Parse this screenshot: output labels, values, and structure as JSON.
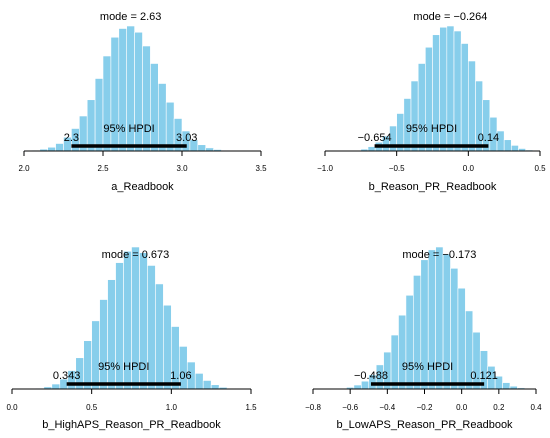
{
  "colors": {
    "bar": "#87CEEB",
    "bar_stroke": "#ffffff",
    "axis": "#000000",
    "hpdi": "#000000"
  },
  "chart_data": [
    {
      "type": "bar",
      "xlabel": "a_Readbook",
      "mode_label": "mode = 2.63",
      "hpdi_label": "95% HPDI",
      "hpdi_low_label": "2.3",
      "hpdi_high_label": "3.03",
      "hpdi": [
        2.3,
        3.03
      ],
      "xlim": [
        2.0,
        3.5
      ],
      "xticks": [
        2.0,
        2.5,
        3.0,
        3.5
      ],
      "xtick_labels": [
        "2.0",
        "2.5",
        "3.0",
        "3.5"
      ],
      "bin_start": 1.95,
      "bin_width": 0.05,
      "values": [
        0.1,
        0.3,
        0.7,
        1.5,
        3,
        6,
        11,
        18,
        28,
        41,
        58,
        76,
        91,
        98,
        100,
        95,
        84,
        70,
        54,
        39,
        26,
        16,
        9,
        5,
        2.5,
        1.2,
        0.5,
        0.2
      ]
    },
    {
      "type": "bar",
      "xlabel": "b_Reason_PR_Readbook",
      "mode_label": "mode = −0.264",
      "hpdi_label": "95% HPDI",
      "hpdi_low_label": "−0.654",
      "hpdi_high_label": "0.14",
      "hpdi": [
        -0.654,
        0.14
      ],
      "xlim": [
        -1.0,
        0.5
      ],
      "xticks": [
        -1.0,
        -0.5,
        0.0,
        0.5
      ],
      "xtick_labels": [
        "−1.0",
        "−0.5",
        "0.0",
        "0.5"
      ],
      "bin_start": -0.85,
      "bin_width": 0.05,
      "values": [
        0.2,
        0.6,
        1.5,
        3.5,
        7,
        12,
        20,
        30,
        42,
        56,
        70,
        83,
        93,
        99,
        100,
        96,
        86,
        72,
        56,
        41,
        27,
        16,
        9,
        4.5,
        2,
        0.8,
        0.3
      ]
    },
    {
      "type": "bar",
      "xlabel": "b_HighAPS_Reason_PR_Readbook",
      "mode_label": "mode = 0.673",
      "hpdi_label": "95% HPDI",
      "hpdi_low_label": "0.343",
      "hpdi_high_label": "1.06",
      "hpdi": [
        0.343,
        1.06
      ],
      "xlim": [
        0.0,
        1.5
      ],
      "xticks": [
        0.0,
        0.5,
        1.0,
        1.5
      ],
      "xtick_labels": [
        "0.0",
        "0.5",
        "1.0",
        "1.5"
      ],
      "bin_start": 0.1,
      "bin_width": 0.05,
      "values": [
        0.2,
        0.6,
        1.5,
        3.5,
        7,
        13,
        22,
        34,
        48,
        63,
        77,
        89,
        97,
        100,
        96,
        87,
        74,
        59,
        44,
        30,
        19,
        11,
        6,
        3,
        1.2,
        0.5
      ]
    },
    {
      "type": "bar",
      "xlabel": "b_LowAPS_Reason_PR_Readbook",
      "mode_label": "mode = −0.173",
      "hpdi_label": "95% HPDI",
      "hpdi_low_label": "−0.488",
      "hpdi_high_label": "0.121",
      "hpdi": [
        -0.488,
        0.121
      ],
      "xlim": [
        -0.8,
        0.4
      ],
      "xticks": [
        -0.8,
        -0.6,
        -0.4,
        -0.2,
        0.0,
        0.2,
        0.4
      ],
      "xtick_labels": [
        "−0.8",
        "−0.6",
        "−0.4",
        "−0.2",
        "0.0",
        "0.2",
        "0.4"
      ],
      "bin_start": -0.7,
      "bin_width": 0.04,
      "values": [
        0.2,
        0.5,
        1.2,
        2.8,
        5.5,
        10,
        17,
        26,
        38,
        52,
        66,
        80,
        91,
        98,
        100,
        95,
        85,
        71,
        55,
        40,
        27,
        16,
        9,
        4.5,
        2,
        0.8
      ]
    }
  ]
}
